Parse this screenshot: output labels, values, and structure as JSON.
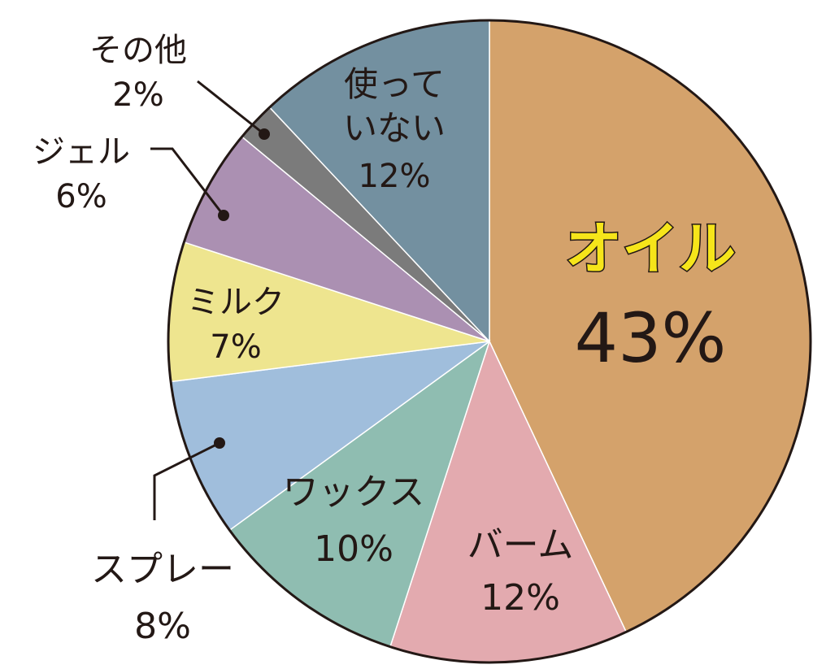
{
  "chart_data": {
    "type": "pie",
    "start_angle": "top",
    "direction": "clockwise",
    "slices": [
      {
        "label": "オイル",
        "value": 43,
        "value_label": "43%",
        "color": "#D4A26B",
        "label_color": "#F6E51A"
      },
      {
        "label": "バーム",
        "value": 12,
        "value_label": "12%",
        "color": "#E3AAAF"
      },
      {
        "label": "ワックス",
        "value": 10,
        "value_label": "10%",
        "color": "#8FBDB1"
      },
      {
        "label": "スプレー",
        "value": 8,
        "value_label": "8%",
        "color": "#A0BEDC"
      },
      {
        "label": "ミルク",
        "value": 7,
        "value_label": "7%",
        "color": "#EEE58F"
      },
      {
        "label": "ジェル",
        "value": 6,
        "value_label": "6%",
        "color": "#AB90B2"
      },
      {
        "label": "その他",
        "value": 2,
        "value_label": "2%",
        "color": "#7B7B7B"
      },
      {
        "label_lines": [
          "使って",
          "いない"
        ],
        "label": "使っていない",
        "value": 12,
        "value_label": "12%",
        "color": "#7390A0"
      }
    ],
    "edge_color": "#231815"
  }
}
